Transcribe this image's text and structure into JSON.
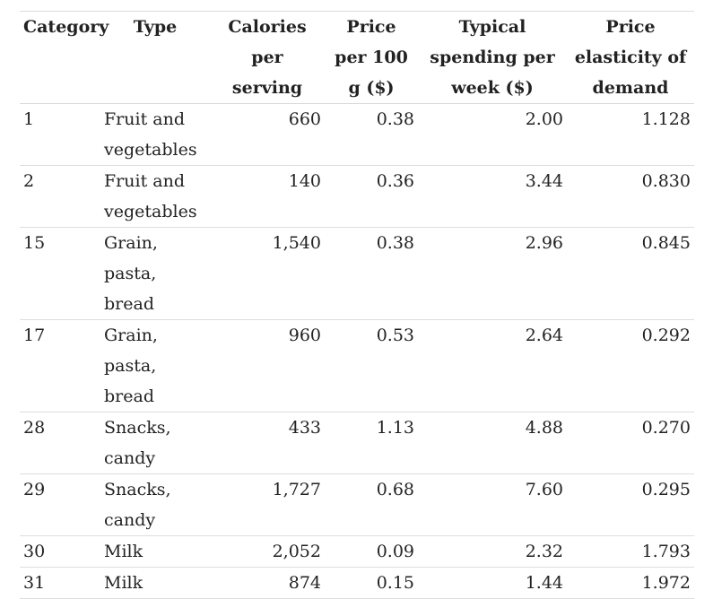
{
  "table": {
    "headers": [
      "Category",
      "Type",
      "Calories per serving",
      "Price per 100 g ($)",
      "Typical spending per week ($)",
      "Price elasticity of demand"
    ],
    "rows": [
      {
        "category": "1",
        "type": "Fruit and vegetables",
        "calories": "660",
        "price": "0.38",
        "spending": "2.00",
        "elasticity": "1.128"
      },
      {
        "category": "2",
        "type": "Fruit and vegetables",
        "calories": "140",
        "price": "0.36",
        "spending": "3.44",
        "elasticity": "0.830"
      },
      {
        "category": "15",
        "type": "Grain, pasta, bread",
        "calories": "1,540",
        "price": "0.38",
        "spending": "2.96",
        "elasticity": "0.845"
      },
      {
        "category": "17",
        "type": "Grain, pasta, bread",
        "calories": "960",
        "price": "0.53",
        "spending": "2.64",
        "elasticity": "0.292"
      },
      {
        "category": "28",
        "type": "Snacks, candy",
        "calories": "433",
        "price": "1.13",
        "spending": "4.88",
        "elasticity": "0.270"
      },
      {
        "category": "29",
        "type": "Snacks, candy",
        "calories": "1,727",
        "price": "0.68",
        "spending": "7.60",
        "elasticity": "0.295"
      },
      {
        "category": "30",
        "type": "Milk",
        "calories": "2,052",
        "price": "0.09",
        "spending": "2.32",
        "elasticity": "1.793"
      },
      {
        "category": "31",
        "type": "Milk",
        "calories": "874",
        "price": "0.15",
        "spending": "1.44",
        "elasticity": "1.972"
      }
    ]
  }
}
